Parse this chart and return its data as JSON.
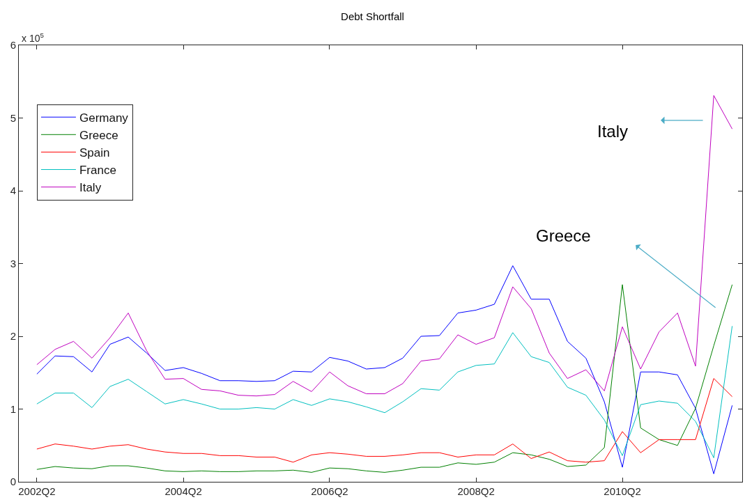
{
  "chart_data": {
    "type": "line",
    "title": "Debt Shortfall",
    "x": [
      "2002-04",
      "2002-07",
      "2002-10",
      "2003-01",
      "2003-04",
      "2003-07",
      "2003-10",
      "2004-01",
      "2004-04",
      "2004-07",
      "2004-10",
      "2005-01",
      "2005-04",
      "2005-07",
      "2005-10",
      "2006-01",
      "2006-04",
      "2006-07",
      "2006-10",
      "2007-01",
      "2007-04",
      "2007-07",
      "2007-10",
      "2008-01",
      "2008-04",
      "2008-07",
      "2008-10",
      "2009-01",
      "2009-04",
      "2009-07",
      "2009-10",
      "2010-01",
      "2010-04",
      "2010-07",
      "2010-10",
      "2011-01",
      "2011-04",
      "2011-07",
      "2011-10"
    ],
    "series": [
      {
        "name": "Germany",
        "color": "#0000ff",
        "values": [
          1.48,
          1.73,
          1.72,
          1.51,
          1.89,
          1.99,
          1.77,
          1.53,
          1.57,
          1.49,
          1.39,
          1.39,
          1.38,
          1.39,
          1.52,
          1.51,
          1.71,
          1.66,
          1.55,
          1.57,
          1.7,
          2.0,
          2.01,
          2.32,
          2.36,
          2.44,
          2.97,
          2.51,
          2.51,
          1.93,
          1.7,
          1.1,
          0.2,
          1.51,
          1.51,
          1.47,
          1.01,
          0.11,
          1.05
        ]
      },
      {
        "name": "Greece",
        "color": "#008000",
        "values": [
          0.17,
          0.21,
          0.19,
          0.18,
          0.22,
          0.22,
          0.19,
          0.15,
          0.14,
          0.15,
          0.14,
          0.14,
          0.15,
          0.15,
          0.16,
          0.13,
          0.19,
          0.18,
          0.15,
          0.13,
          0.16,
          0.2,
          0.2,
          0.26,
          0.24,
          0.27,
          0.4,
          0.37,
          0.31,
          0.21,
          0.23,
          0.47,
          2.71,
          0.74,
          0.58,
          0.5,
          1.01,
          1.87,
          2.71
        ]
      },
      {
        "name": "Spain",
        "color": "#ff0000",
        "values": [
          0.45,
          0.52,
          0.49,
          0.45,
          0.49,
          0.51,
          0.45,
          0.41,
          0.39,
          0.39,
          0.36,
          0.36,
          0.34,
          0.34,
          0.27,
          0.37,
          0.4,
          0.38,
          0.35,
          0.35,
          0.37,
          0.4,
          0.4,
          0.34,
          0.37,
          0.37,
          0.52,
          0.32,
          0.41,
          0.29,
          0.27,
          0.29,
          0.69,
          0.4,
          0.58,
          0.58,
          0.58,
          1.42,
          1.17
        ]
      },
      {
        "name": "France",
        "color": "#00bfbf",
        "values": [
          1.07,
          1.22,
          1.22,
          1.02,
          1.31,
          1.41,
          1.24,
          1.07,
          1.13,
          1.07,
          1.0,
          1.0,
          1.02,
          1.0,
          1.13,
          1.05,
          1.14,
          1.1,
          1.03,
          0.95,
          1.1,
          1.28,
          1.26,
          1.51,
          1.6,
          1.62,
          2.05,
          1.72,
          1.64,
          1.3,
          1.19,
          0.85,
          0.36,
          1.06,
          1.11,
          1.08,
          0.83,
          0.33,
          2.14
        ]
      },
      {
        "name": "Italy",
        "color": "#bf00bf",
        "values": [
          1.61,
          1.82,
          1.93,
          1.7,
          1.98,
          2.32,
          1.8,
          1.41,
          1.42,
          1.27,
          1.25,
          1.19,
          1.18,
          1.2,
          1.38,
          1.24,
          1.51,
          1.32,
          1.21,
          1.21,
          1.35,
          1.66,
          1.69,
          2.02,
          1.89,
          1.98,
          2.68,
          2.38,
          1.77,
          1.42,
          1.54,
          1.25,
          2.13,
          1.55,
          2.06,
          2.32,
          1.59,
          5.31,
          4.85
        ]
      }
    ],
    "xlim": [
      "2002-01",
      "2011-11-20"
    ],
    "xticks": [
      {
        "value": "2002-04",
        "label": "2002Q2"
      },
      {
        "value": "2004-04",
        "label": "2004Q2"
      },
      {
        "value": "2006-04",
        "label": "2006Q2"
      },
      {
        "value": "2008-04",
        "label": "2008Q2"
      },
      {
        "value": "2010-04",
        "label": "2010Q2"
      }
    ],
    "ylim": [
      0,
      6
    ],
    "yticks": [
      0,
      1,
      2,
      3,
      4,
      5,
      6
    ],
    "legend": "top left",
    "marker": "none",
    "line_style": "solid",
    "annotations": [
      "x 10$^{5}$",
      "Italy",
      "Greece"
    ]
  }
}
